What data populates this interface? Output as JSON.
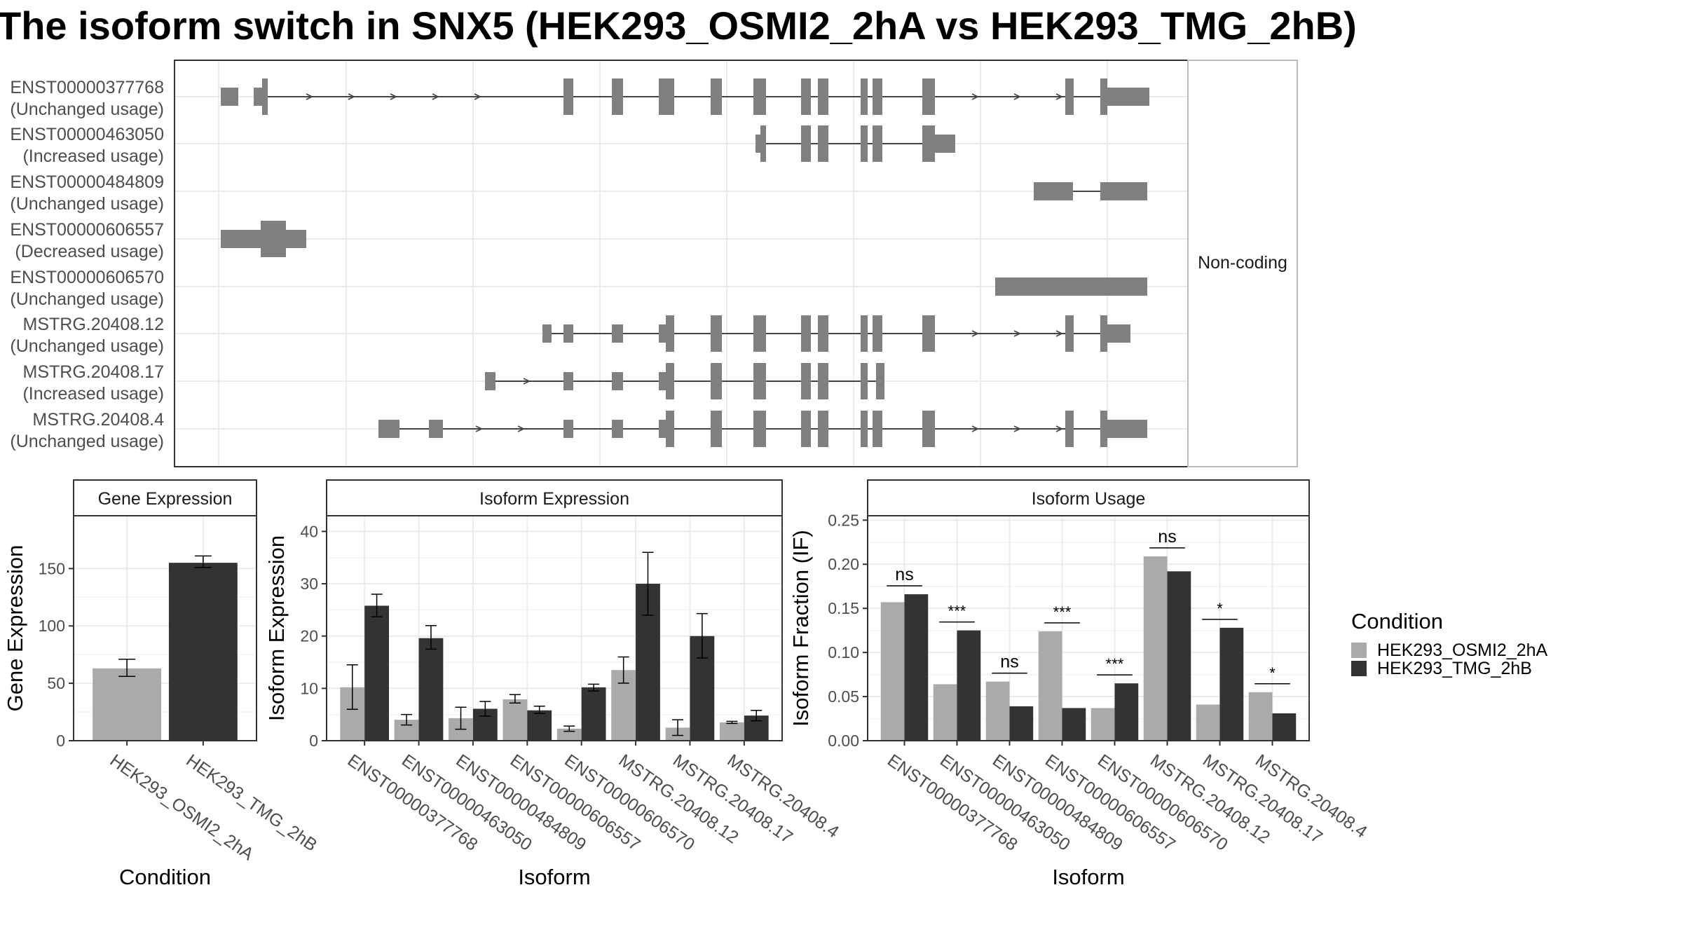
{
  "title": "The isoform switch in SNX5 (HEK293_OSMI2_2hA vs HEK293_TMG_2hB)",
  "structure_panel": {
    "strip_label": "Non-coding",
    "transcripts": [
      {
        "id": "ENST00000377768",
        "usage": "(Unchanged usage)"
      },
      {
        "id": "ENST00000463050",
        "usage": "(Increased usage)"
      },
      {
        "id": "ENST00000484809",
        "usage": "(Unchanged usage)"
      },
      {
        "id": "ENST00000606557",
        "usage": "(Decreased usage)"
      },
      {
        "id": "ENST00000606570",
        "usage": "(Unchanged usage)"
      },
      {
        "id": "MSTRG.20408.12",
        "usage": "(Unchanged usage)"
      },
      {
        "id": "MSTRG.20408.17",
        "usage": "(Increased usage)"
      },
      {
        "id": "MSTRG.20408.4",
        "usage": "(Unchanged usage)"
      }
    ]
  },
  "legend": {
    "title": "Condition",
    "entries": [
      {
        "label": "HEK293_OSMI2_2hA",
        "color": "#aaaaaa"
      },
      {
        "label": "HEK293_TMG_2hB",
        "color": "#333333"
      }
    ]
  },
  "chart_data": [
    {
      "type": "bar",
      "title": "Gene Expression",
      "xlabel": "Condition",
      "ylabel": "Gene Expression",
      "ylim": [
        0,
        196
      ],
      "yticks": [
        "0",
        "50",
        "100",
        "150"
      ],
      "categories": [
        "HEK293_OSMI2_2hA",
        "HEK293_TMG_2hB"
      ],
      "values": [
        63,
        155
      ],
      "errors": [
        [
          56,
          71
        ],
        [
          151,
          161
        ]
      ],
      "colors": [
        "#aaaaaa",
        "#333333"
      ]
    },
    {
      "type": "bar",
      "title": "Isoform Expression",
      "xlabel": "Isoform",
      "ylabel": "Isoform Expression",
      "ylim": [
        0,
        43
      ],
      "yticks": [
        "0",
        "10",
        "20",
        "30",
        "40"
      ],
      "categories": [
        "ENST00000377768",
        "ENST00000463050",
        "ENST00000484809",
        "ENST00000606557",
        "ENST00000606570",
        "MSTRG.20408.12",
        "MSTRG.20408.17",
        "MSTRG.20408.4"
      ],
      "series": [
        {
          "name": "HEK293_OSMI2_2hA",
          "color": "#aaaaaa",
          "values": [
            10.2,
            4.0,
            4.3,
            7.9,
            2.3,
            13.5,
            2.5,
            3.5
          ],
          "errors": [
            [
              6.0,
              14.5
            ],
            [
              3.0,
              5.0
            ],
            [
              2.2,
              6.4
            ],
            [
              7.2,
              8.8
            ],
            [
              1.8,
              2.8
            ],
            [
              11.0,
              16.0
            ],
            [
              1.0,
              4.0
            ],
            [
              3.3,
              3.7
            ]
          ]
        },
        {
          "name": "HEK293_TMG_2hB",
          "color": "#333333",
          "values": [
            25.8,
            19.6,
            6.1,
            5.8,
            10.2,
            30.0,
            20.0,
            4.8
          ],
          "errors": [
            [
              23.7,
              28.0
            ],
            [
              17.5,
              22.0
            ],
            [
              4.7,
              7.5
            ],
            [
              5.2,
              6.6
            ],
            [
              9.5,
              10.8
            ],
            [
              24.0,
              36.0
            ],
            [
              15.8,
              24.3
            ],
            [
              3.8,
              5.8
            ]
          ]
        }
      ]
    },
    {
      "type": "bar",
      "title": "Isoform Usage",
      "xlabel": "Isoform",
      "ylabel": "Isoform Fraction (IF)",
      "ylim": [
        0,
        0.255
      ],
      "yticks": [
        "0.00",
        "0.05",
        "0.10",
        "0.15",
        "0.20",
        "0.25"
      ],
      "categories": [
        "ENST00000377768",
        "ENST00000463050",
        "ENST00000484809",
        "ENST00000606557",
        "ENST00000606570",
        "MSTRG.20408.12",
        "MSTRG.20408.17",
        "MSTRG.20408.4"
      ],
      "series": [
        {
          "name": "HEK293_OSMI2_2hA",
          "color": "#aaaaaa",
          "values": [
            0.157,
            0.064,
            0.067,
            0.124,
            0.037,
            0.209,
            0.041,
            0.055
          ]
        },
        {
          "name": "HEK293_TMG_2hB",
          "color": "#333333",
          "values": [
            0.166,
            0.125,
            0.039,
            0.037,
            0.065,
            0.192,
            0.128,
            0.031
          ]
        }
      ],
      "annotations": [
        "ns",
        "***",
        "ns",
        "***",
        "***",
        "ns",
        "*",
        "*"
      ]
    }
  ]
}
